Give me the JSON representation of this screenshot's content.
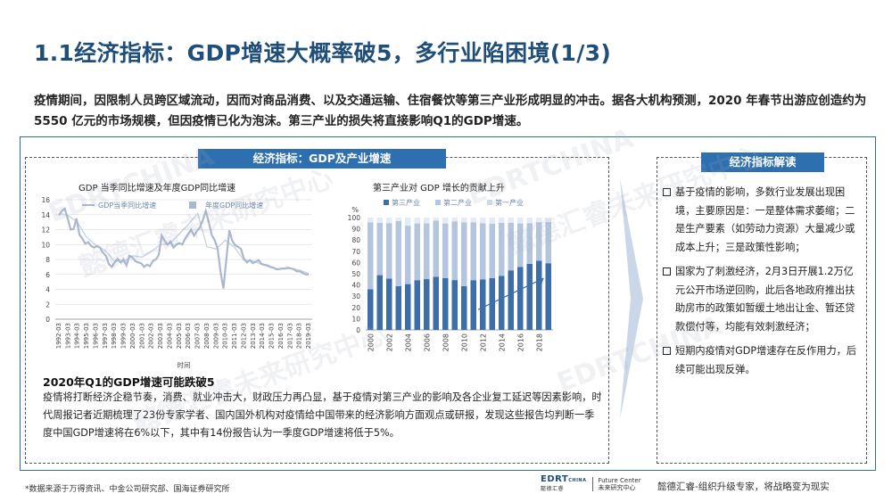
{
  "title": "1.1经济指标：GDP增速大概率破5，多行业陷困境(1/3)",
  "intro": "疫情期间，因限制人员跨区域流动，因而对商品消费、以及交通运输、住宿餐饮等第三产业形成明显的冲击。据各大机构预测，2020 年春节出游应创造约为 5550 亿元的市场规模，但因疫情已化为泡沫。第三产业的损失将直接影响Q1的GDP增速。",
  "section_tag": "经济指标：GDP及产业增速",
  "right_tag": "经济指标解读",
  "colors": {
    "brand": "#1f4e79",
    "accent": "#2e6fb0",
    "bar_dark": "#3d6ea8",
    "bar_light": "#b4c6de",
    "bar_lighter": "#e4ebf4"
  },
  "chart_data": [
    {
      "type": "line",
      "title": "GDP 当季同比增速及年度GDP同比增速",
      "xlabel": "时间",
      "ylabel": "",
      "ylim": [
        0,
        16
      ],
      "yticks": [
        0,
        2,
        4,
        6,
        8,
        10,
        12,
        14,
        16
      ],
      "xticks": [
        "1992-03",
        "1993-03",
        "1994-03",
        "1995-03",
        "1996-03",
        "1997-03",
        "1998-03",
        "1999-03",
        "2000-03",
        "2001-03",
        "2002-03",
        "2003-03",
        "2004-03",
        "2005-03",
        "2006-03",
        "2007-03",
        "2008-03",
        "2009-03",
        "2010-03",
        "2011-03",
        "2012-03",
        "2013-03",
        "2014-03",
        "2015-03",
        "2016-03",
        "2017-03",
        "2018-03",
        "2019-03"
      ],
      "series": [
        {
          "name": "GDP当季同比增速",
          "values": [
            13.9,
            14.5,
            14.8,
            13.5,
            12.0,
            12.1,
            13.5,
            11.3,
            10.8,
            10.1,
            10.3,
            9.8,
            9.6,
            9.8,
            9.6,
            8.9,
            8.5,
            7.4,
            7.0,
            7.6,
            8.1,
            7.6,
            8.0,
            7.2,
            8.5,
            8.3,
            7.8,
            7.6,
            7.5,
            7.0,
            7.3,
            7.1,
            7.8,
            8.0,
            8.6,
            11.2,
            10.5,
            10.0,
            10.4,
            9.6,
            10.0,
            10.2,
            10.0,
            10.8,
            11.4,
            12.0,
            11.2,
            11.8,
            12.3,
            13.3,
            14.5,
            13.0,
            11.3,
            10.6,
            9.5,
            6.4,
            4.1,
            8.1,
            11.9,
            10.5,
            9.9,
            9.7,
            9.4,
            8.1,
            7.6,
            7.9,
            7.5,
            7.7,
            7.9,
            7.4,
            7.3,
            7.2,
            7.0,
            6.9,
            6.7,
            6.7,
            6.8,
            6.8,
            6.9,
            6.8,
            6.7,
            6.4,
            6.4,
            6.2,
            6.0,
            6.0
          ]
        },
        {
          "name": "年度GDP同比增速",
          "values": [
            14.2,
            13.9,
            13.0,
            11.0,
            9.9,
            9.2,
            7.8,
            7.7,
            8.5,
            8.3,
            9.1,
            10.0,
            10.1,
            11.4,
            12.7,
            14.2,
            9.7,
            9.4,
            10.6,
            9.6,
            7.9,
            7.8,
            7.3,
            6.9,
            6.7,
            6.8,
            6.6,
            6.1
          ]
        }
      ]
    },
    {
      "type": "bar",
      "stacked": true,
      "title": "第三产业对 GDP 增长的贡献上升",
      "ylabel": "%",
      "ylim": [
        0,
        100
      ],
      "yticks": [
        0,
        10,
        20,
        30,
        40,
        50,
        60,
        70,
        80,
        90,
        100
      ],
      "categories": [
        "2000",
        "2001",
        "2002",
        "2003",
        "2004",
        "2005",
        "2006",
        "2007",
        "2008",
        "2009",
        "2010",
        "2011",
        "2012",
        "2013",
        "2014",
        "2015",
        "2016",
        "2017",
        "2018",
        "2019"
      ],
      "xtick_labels": [
        "2000",
        "2002",
        "2004",
        "2006",
        "2008",
        "2010",
        "2012",
        "2014",
        "2016",
        "2018"
      ],
      "series": [
        {
          "name": "第三产业",
          "values": [
            36.2,
            48.7,
            45.7,
            39.0,
            40.8,
            44.3,
            45.2,
            47.3,
            46.2,
            44.4,
            39.0,
            44.3,
            45.0,
            46.1,
            48.0,
            53.0,
            56.0,
            58.8,
            61.5,
            59.4
          ]
        },
        {
          "name": "第二产业",
          "values": [
            59.6,
            46.5,
            49.4,
            57.9,
            52.0,
            50.5,
            49.6,
            50.1,
            48.6,
            52.3,
            56.6,
            51.5,
            49.9,
            48.5,
            47.3,
            42.3,
            38.8,
            36.3,
            34.4,
            36.8
          ]
        },
        {
          "name": "第一产业",
          "values": [
            4.2,
            4.8,
            4.9,
            3.1,
            7.2,
            5.2,
            5.2,
            2.6,
            5.2,
            3.3,
            4.4,
            4.2,
            5.1,
            5.4,
            4.7,
            4.7,
            5.2,
            4.9,
            4.1,
            3.8
          ]
        }
      ]
    }
  ],
  "sub_heading": "2020年Q1的GDP增速可能跌破5",
  "sub_body": "疫情将打断经济企稳节奏，消费、就业冲击大，财政压力再凸显，基于疫情对第三产业的影响及各企业复工延迟等因素影响，时代周报记者近期梳理了23份专家学者、国内国外机构对疫情给中国带来的经济影响方面观点或研报，发现这些报告均判断一季度中国GDP增速将在6%以下，其中有14份报告认为一季度GDP增速将低于5%。",
  "bullets": [
    "基于疫情的影响，多数行业发展出现困境，主要原因是：一是整体需求萎缩；二是生产要素（如劳动力资源）大量减少或成本上升；三是政策性影响；",
    "国家为了刺激经济，2月3日开展1.2万亿元公开市场逆回购，此后各地政府推出扶助房市的政策如暂缓土地出让金、暂还贷款偿付等，均能有效刺激经济；",
    "短期内疫情对GDP增速存在反作用力，后续可能出现反弹。"
  ],
  "source": "*数据来源于万得资讯、中金公司研究部、国海证券研究所",
  "footer": {
    "logo_text": "EDRT",
    "logo_sub": "CHINA",
    "logo_cn": "懿德汇睿",
    "partner_en": "Future Center",
    "partner_cn": "未来研究中心",
    "slogan": "懿德汇睿-组织升级专家，将战略变为现实"
  },
  "watermarks": [
    "EDRTCHINA",
    "懿德汇睿未来研究中心",
    "EDRTCHINA",
    "懿德汇睿未来研究中心",
    "EDRTCHINA",
    "懿德汇睿未来研究中心"
  ]
}
